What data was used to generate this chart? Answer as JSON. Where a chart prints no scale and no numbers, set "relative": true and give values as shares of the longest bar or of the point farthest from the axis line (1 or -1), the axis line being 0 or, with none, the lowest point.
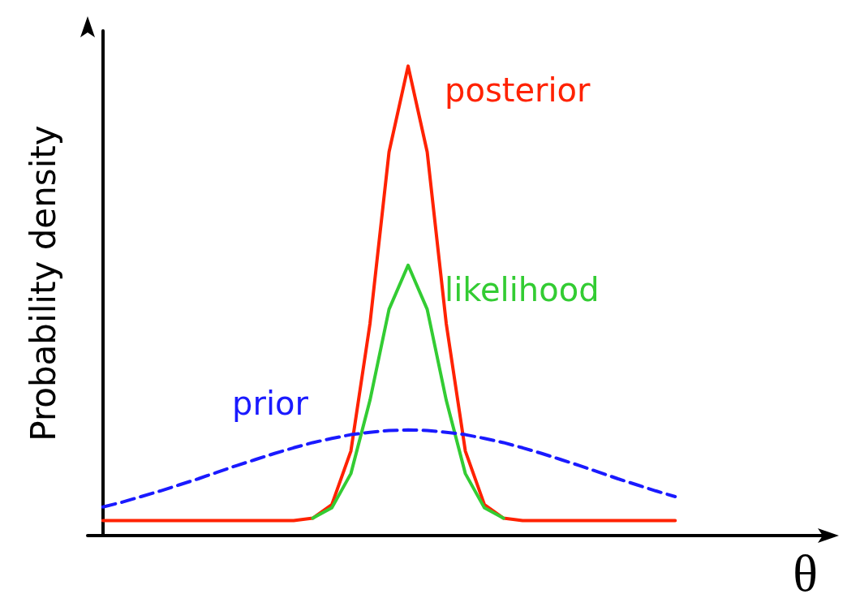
{
  "chart_data": {
    "type": "line",
    "relative": true,
    "ylabel": "Probability density",
    "xlabel": "θ",
    "marker": "none",
    "grid": false,
    "legend": false,
    "categories": [
      null,
      null,
      null,
      null,
      null,
      null,
      null,
      null,
      null,
      null,
      null,
      null,
      null,
      null,
      null,
      null,
      null,
      null,
      null,
      null,
      null,
      null,
      null,
      null,
      null,
      null,
      null,
      null,
      null,
      null,
      null
    ],
    "series": [
      {
        "name": "posterior",
        "color": "#ff2200",
        "line_style": "solid",
        "values": [
          0.032,
          0.032,
          0.032,
          0.032,
          0.032,
          0.032,
          0.032,
          0.032,
          0.032,
          0.032,
          0.032,
          0.037,
          0.066,
          0.18,
          0.451,
          0.817,
          1,
          0.817,
          0.451,
          0.18,
          0.066,
          0.037,
          0.032,
          0.032,
          0.032,
          0.032,
          0.032,
          0.032,
          0.032,
          0.032,
          0.032
        ]
      },
      {
        "name": "likelihood",
        "color": "#33cc33",
        "line_style": "solid",
        "values": [
          null,
          null,
          null,
          null,
          null,
          null,
          null,
          null,
          null,
          null,
          null,
          0.037,
          0.059,
          0.132,
          0.288,
          0.482,
          0.576,
          0.482,
          0.288,
          0.132,
          0.059,
          0.037,
          null,
          null,
          null,
          null,
          null,
          null,
          null,
          null,
          null
        ]
      },
      {
        "name": "prior",
        "color": "#1a1aff",
        "line_style": "dashed",
        "values": [
          0.061,
          0.071,
          0.083,
          0.095,
          0.108,
          0.121,
          0.135,
          0.149,
          0.162,
          0.175,
          0.187,
          0.198,
          0.207,
          0.215,
          0.22,
          0.224,
          0.225,
          0.224,
          0.22,
          0.215,
          0.207,
          0.198,
          0.187,
          0.175,
          0.162,
          0.149,
          0.135,
          0.121,
          0.108,
          0.095,
          0.083
        ]
      }
    ]
  }
}
